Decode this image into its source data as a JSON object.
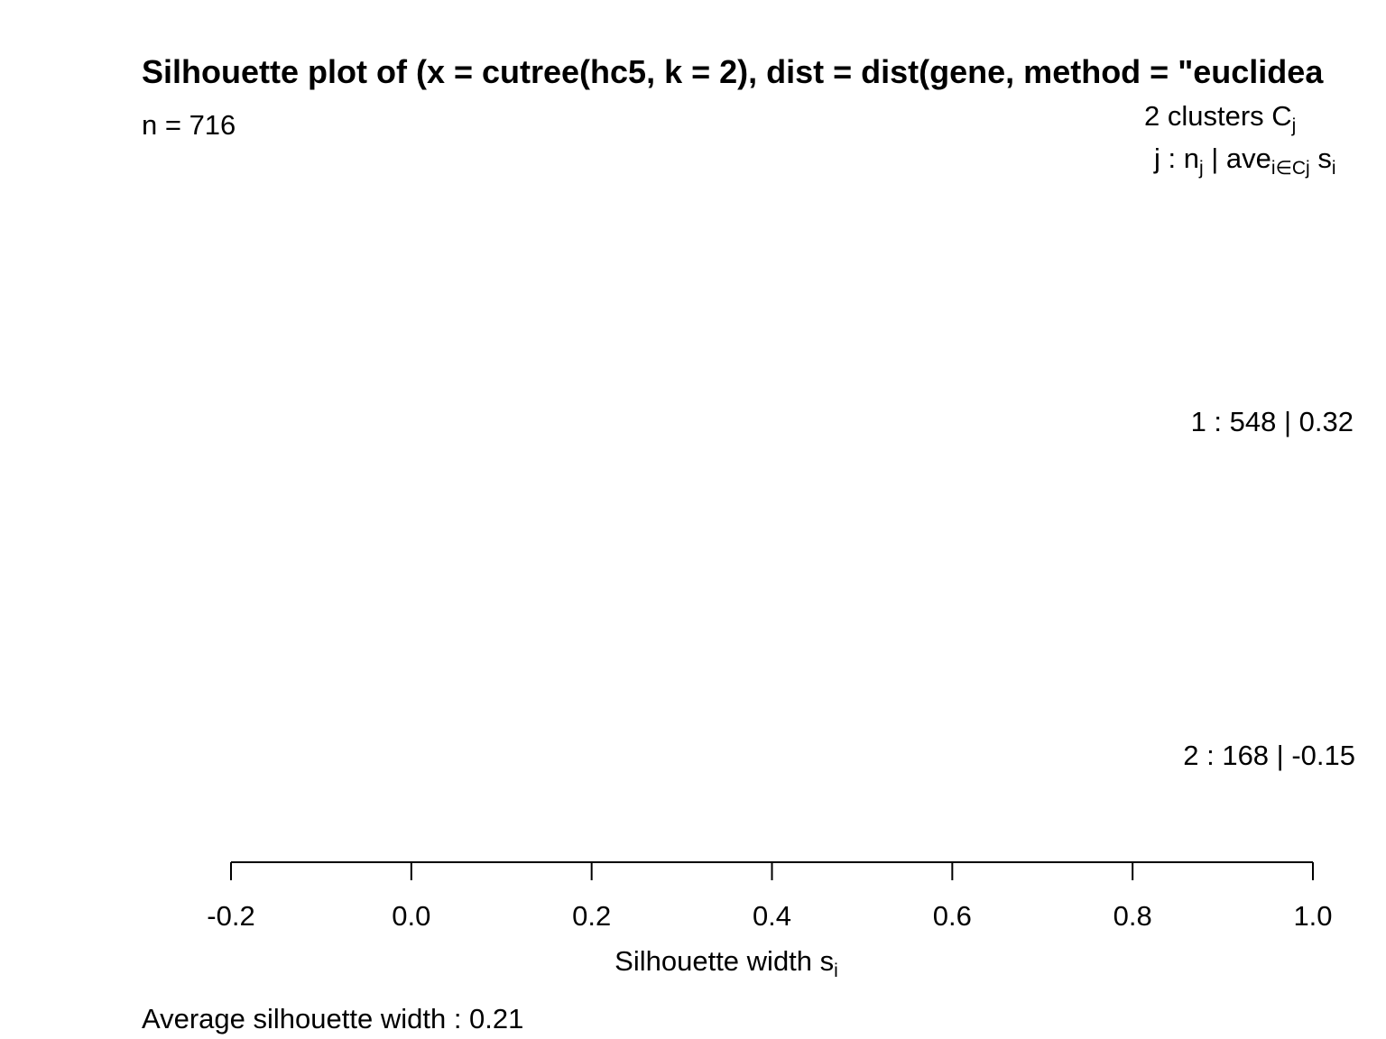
{
  "chart_data": {
    "type": "bar",
    "orientation": "horizontal",
    "title": "Silhouette plot of (x = cutree(hc5, k = 2), dist = dist(gene, method = \"euclidea",
    "n_label": "n = 716",
    "legend_header": {
      "clusters": "2  clusters  C",
      "clusters_sub": "j",
      "row_prefix": "j :  n",
      "row_prefix_sub": "j",
      "row_mid": " | ave",
      "row_mid_sub": "i∈Cj",
      "row_end": "  s",
      "row_end_sub": "i"
    },
    "clusters": [
      {
        "label": "1 :   548  |  0.32",
        "j": 1,
        "n": 548,
        "ave_width": 0.32
      },
      {
        "label": "2 :   168  |  -0.15",
        "j": 2,
        "n": 168,
        "ave_width": -0.15
      }
    ],
    "xlabel": "Silhouette width s",
    "xlabel_sub": "i",
    "xlim": [
      -0.2,
      1.0
    ],
    "xticks": [
      -0.2,
      0.0,
      0.2,
      0.4,
      0.6,
      0.8,
      1.0
    ],
    "xtick_labels": [
      "-0.2",
      "0.0",
      "0.2",
      "0.4",
      "0.6",
      "0.8",
      "1.0"
    ],
    "average_label": "Average silhouette width :  0.21",
    "average_width": 0.21
  }
}
